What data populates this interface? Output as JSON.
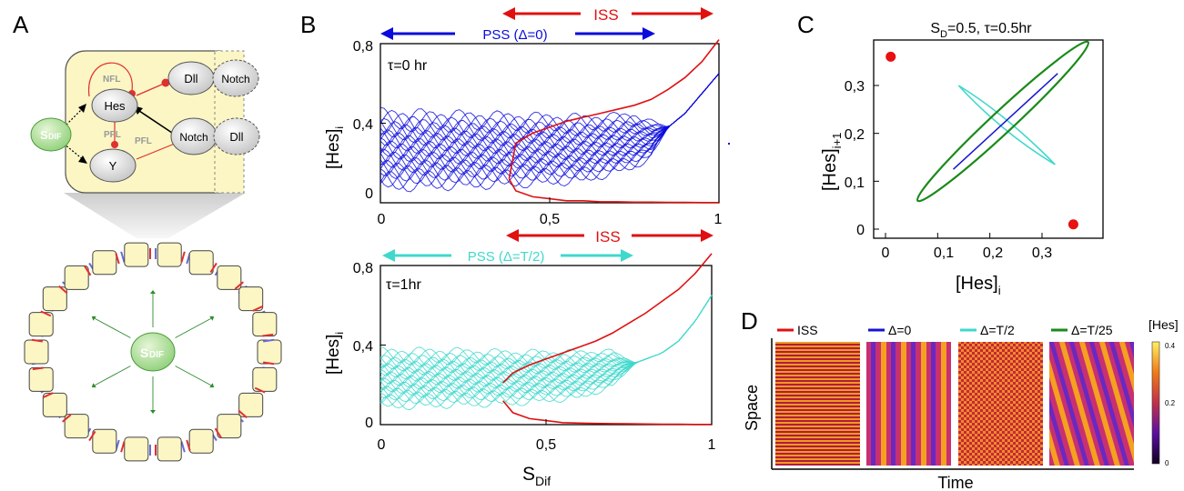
{
  "panels": {
    "A": {
      "letter": "A",
      "nodes": {
        "hes": "Hes",
        "y": "Y",
        "dll_top": "Dll",
        "notch_top": "Notch",
        "notch_mid": "Notch",
        "dll_mid": "Dll",
        "sdif_s": "S",
        "sdif_sub": "DIF"
      },
      "loop_labels": {
        "nfl": "NFL",
        "pfl_left": "PFL",
        "pfl_right": "PFL"
      },
      "ring_center_s": "S",
      "ring_center_sub": "DIF"
    },
    "B": {
      "letter": "B",
      "top": {
        "annotation": "τ=0 hr",
        "iss_label": "ISS",
        "pss_label": "PSS (Δ=0)",
        "ylabel_main": "[Hes]",
        "ylabel_sub": "i",
        "yticks": [
          "0",
          "0,4",
          "0,8"
        ],
        "xticks": [
          "0",
          "0,5",
          "1"
        ],
        "color": "#0a0adc"
      },
      "bottom": {
        "annotation": "τ=1hr",
        "iss_label": "ISS",
        "pss_label": "PSS (Δ=T/2)",
        "ylabel_main": "[Hes]",
        "ylabel_sub": "i",
        "yticks": [
          "0",
          "0,4",
          "0,8"
        ],
        "xticks": [
          "0",
          "0,5",
          "1"
        ],
        "xlabel_main": "S",
        "xlabel_sub": "Dif",
        "color": "#40d8cc"
      },
      "iss_color": "#e01010"
    },
    "C": {
      "letter": "C",
      "title_pre": "S",
      "title_sub": "D",
      "title_post": "=0.5, τ=0.5hr",
      "xlabel_main": "[Hes]",
      "xlabel_sub": "i",
      "ylabel_main": "[Hes]",
      "ylabel_sub": "i+1",
      "xticks": [
        "0",
        "0,1",
        "0,2",
        "0,3"
      ],
      "yticks": [
        "0",
        "0,1",
        "0,2",
        "0,3"
      ]
    },
    "D": {
      "letter": "D",
      "legend": [
        {
          "label": "ISS",
          "color": "#e01010"
        },
        {
          "label": "Δ=0",
          "color": "#1515d0"
        },
        {
          "label": "Δ=T/2",
          "color": "#40d8cc"
        },
        {
          "label": "Δ=T/25",
          "color": "#1a8a1a"
        }
      ],
      "ylabel": "Space",
      "xlabel": "Time",
      "colorbar_title": "[Hes]",
      "colorbar_ticks": [
        "0.4",
        "0.2",
        "0"
      ]
    }
  },
  "chart_data": [
    {
      "type": "scatter",
      "panel": "B-top",
      "xlabel": "S_Dif",
      "ylabel": "[Hes]_i",
      "xlim": [
        0,
        1
      ],
      "ylim": [
        0,
        0.8
      ],
      "series": [
        {
          "name": "ISS",
          "x": [
            0.38,
            0.4,
            0.45,
            0.5,
            0.55,
            0.6,
            0.65,
            0.7,
            0.75,
            0.8,
            0.85,
            0.9,
            0.95,
            1.0
          ],
          "upper": [
            0.12,
            0.3,
            0.35,
            0.38,
            0.41,
            0.43,
            0.45,
            0.47,
            0.49,
            0.52,
            0.57,
            0.63,
            0.71,
            0.82
          ],
          "lower": [
            0.12,
            0.06,
            0.03,
            0.02,
            0.01,
            0.01,
            0.005,
            0.005,
            0.003,
            0.003,
            0.002,
            0.002,
            0.001,
            0.001
          ]
        },
        {
          "name": "PSS (Δ=0)",
          "x": [
            0,
            0.2,
            0.4,
            0.6,
            0.75,
            0.8,
            0.85,
            0.9,
            0.95,
            1.0
          ],
          "max": [
            0.48,
            0.47,
            0.46,
            0.45,
            0.46,
            0.42,
            0.38,
            0.45,
            0.55,
            0.65
          ],
          "min": [
            0.05,
            0.06,
            0.07,
            0.09,
            0.16,
            0.22,
            0.38,
            0.45,
            0.55,
            0.65
          ]
        }
      ]
    },
    {
      "type": "scatter",
      "panel": "B-bottom",
      "xlabel": "S_Dif",
      "ylabel": "[Hes]_i",
      "xlim": [
        0,
        1
      ],
      "ylim": [
        0,
        0.8
      ],
      "series": [
        {
          "name": "ISS",
          "x": [
            0.37,
            0.4,
            0.45,
            0.5,
            0.55,
            0.6,
            0.65,
            0.7,
            0.75,
            0.8,
            0.85,
            0.9,
            0.95,
            1.0
          ],
          "upper": [
            0.21,
            0.26,
            0.3,
            0.33,
            0.36,
            0.39,
            0.42,
            0.46,
            0.51,
            0.56,
            0.62,
            0.68,
            0.76,
            0.86
          ],
          "lower": [
            0.12,
            0.06,
            0.03,
            0.02,
            0.01,
            0.008,
            0.006,
            0.005,
            0.004,
            0.003,
            0.002,
            0.002,
            0.001,
            0.001
          ]
        },
        {
          "name": "PSS (Δ=T/2)",
          "x": [
            0,
            0.2,
            0.4,
            0.6,
            0.7,
            0.77,
            0.85,
            0.9,
            0.95,
            1.0
          ],
          "max": [
            0.39,
            0.39,
            0.38,
            0.38,
            0.38,
            0.31,
            0.36,
            0.42,
            0.52,
            0.65
          ],
          "min": [
            0.07,
            0.08,
            0.09,
            0.12,
            0.18,
            0.31,
            0.36,
            0.42,
            0.52,
            0.65
          ]
        }
      ]
    },
    {
      "type": "line",
      "panel": "C",
      "xlabel": "[Hes]_i",
      "ylabel": "[Hes]_i+1",
      "xlim": [
        0,
        0.37
      ],
      "ylim": [
        0,
        0.37
      ],
      "series": [
        {
          "name": "ISS",
          "points": [
            [
              0.01,
              0.36
            ],
            [
              0.36,
              0.01
            ]
          ]
        },
        {
          "name": "Δ=0",
          "center": [
            0.225,
            0.225
          ],
          "extent": [
            0.13,
            0.33
          ]
        },
        {
          "name": "Δ=T/2",
          "center": [
            0.225,
            0.225
          ],
          "extent": [
            0.13,
            0.33
          ]
        },
        {
          "name": "Δ=T/25",
          "center": [
            0.225,
            0.225
          ],
          "extent": [
            0.125,
            0.335
          ]
        }
      ]
    },
    {
      "type": "heatmap",
      "panel": "D",
      "categories": [
        "ISS",
        "Δ=0",
        "Δ=T/2",
        "Δ=T/25"
      ],
      "colorbar_range": [
        0,
        0.4
      ]
    }
  ]
}
